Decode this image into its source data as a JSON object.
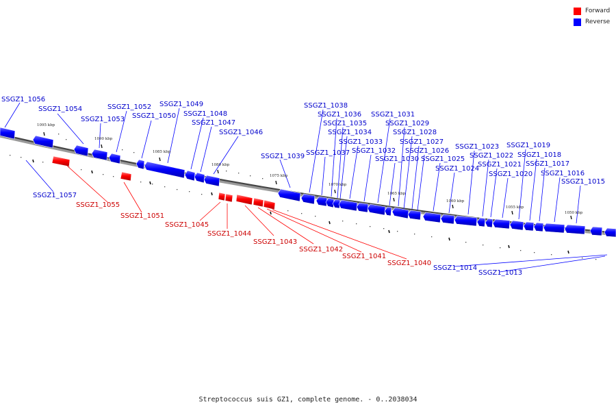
{
  "caption": "Streptococcus suis GZ1, complete genome. - 0..2038034",
  "legend": [
    {
      "label": "Forward",
      "color": "#ff0000"
    },
    {
      "label": "Reverse",
      "color": "#0000ff"
    }
  ],
  "colors": {
    "forward": "#ff0000",
    "reverse": "#0000ff",
    "backbone": "#555555"
  },
  "ticks": [
    "1095 kbp",
    "1090 kbp",
    "1085 kbp",
    "1080 kbp",
    "1075 kbp",
    "1070 kbp",
    "1065 kbp",
    "1060 kbp",
    "1055 kbp",
    "1050 kbp"
  ],
  "reverse_genes": [
    "SSGZ1_1056",
    "SSGZ1_1054",
    "SSGZ1_1053",
    "SSGZ1_1052",
    "SSGZ1_1050",
    "SSGZ1_1049",
    "SSGZ1_1048",
    "SSGZ1_1047",
    "SSGZ1_1046",
    "SSGZ1_1039",
    "SSGZ1_1038",
    "SSGZ1_1037",
    "SSGZ1_1036",
    "SSGZ1_1035",
    "SSGZ1_1034",
    "SSGZ1_1033",
    "SSGZ1_1032",
    "SSGZ1_1031",
    "SSGZ1_1030",
    "SSGZ1_1029",
    "SSGZ1_1028",
    "SSGZ1_1027",
    "SSGZ1_1026",
    "SSGZ1_1025",
    "SSGZ1_1024",
    "SSGZ1_1023",
    "SSGZ1_1022",
    "SSGZ1_1021",
    "SSGZ1_1020",
    "SSGZ1_1019",
    "SSGZ1_1018",
    "SSGZ1_1017",
    "SSGZ1_1016",
    "SSGZ1_1015",
    "SSGZ1_1057",
    "SSGZ1_1014",
    "SSGZ1_1013"
  ],
  "forward_genes": [
    "SSGZ1_1055",
    "SSGZ1_1051",
    "SSGZ1_1045",
    "SSGZ1_1044",
    "SSGZ1_1043",
    "SSGZ1_1042",
    "SSGZ1_1041",
    "SSGZ1_1040"
  ]
}
